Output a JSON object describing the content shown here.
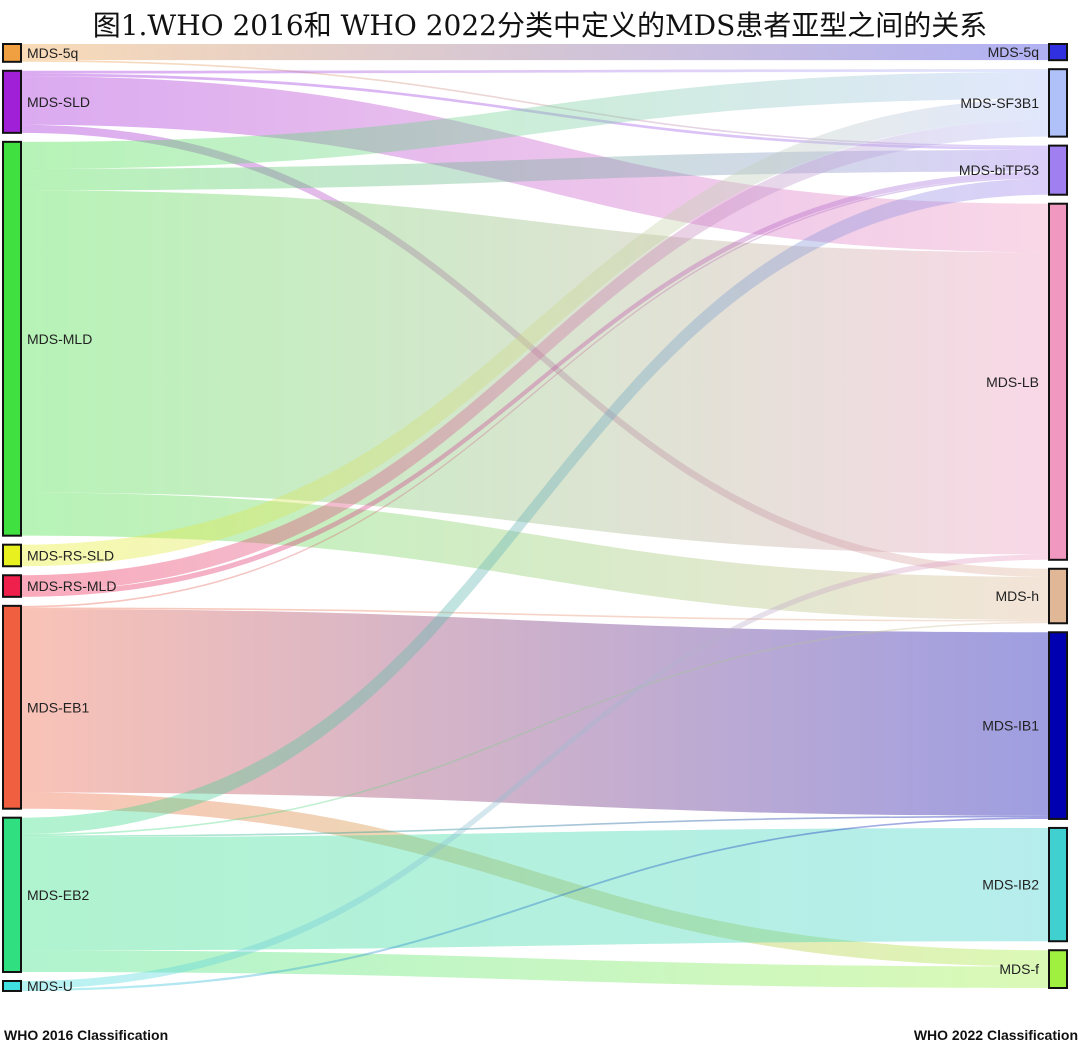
{
  "title": "图1.WHO 2016和 WHO 2022分类中定义的MDS患者亚型之间的关系",
  "left_axis_label": "WHO 2016 Classification",
  "right_axis_label": "WHO 2022 Classification",
  "chart_data": {
    "type": "sankey",
    "left_nodes": [
      {
        "id": "L_5q",
        "label": "MDS-5q",
        "color": "#f0a040"
      },
      {
        "id": "L_SLD",
        "label": "MDS-SLD",
        "color": "#a020d8"
      },
      {
        "id": "L_MLD",
        "label": "MDS-MLD",
        "color": "#40e040"
      },
      {
        "id": "L_RSSLD",
        "label": "MDS-RS-SLD",
        "color": "#e8f020"
      },
      {
        "id": "L_RSMLD",
        "label": "MDS-RS-MLD",
        "color": "#f0204c"
      },
      {
        "id": "L_EB1",
        "label": "MDS-EB1",
        "color": "#f06040"
      },
      {
        "id": "L_EB2",
        "label": "MDS-EB2",
        "color": "#30e080"
      },
      {
        "id": "L_U",
        "label": "MDS-U",
        "color": "#40e0e0"
      }
    ],
    "right_nodes": [
      {
        "id": "R_5q",
        "label": "MDS-5q",
        "color": "#3030e0"
      },
      {
        "id": "R_SF3B1",
        "label": "MDS-SF3B1",
        "color": "#b0c0f8"
      },
      {
        "id": "R_biTP53",
        "label": "MDS-biTP53",
        "color": "#a080f0"
      },
      {
        "id": "R_LB",
        "label": "MDS-LB",
        "color": "#f098c0"
      },
      {
        "id": "R_h",
        "label": "MDS-h",
        "color": "#e0b898"
      },
      {
        "id": "R_IB1",
        "label": "MDS-IB1",
        "color": "#0000b0"
      },
      {
        "id": "R_IB2",
        "label": "MDS-IB2",
        "color": "#40d0d0"
      },
      {
        "id": "R_f",
        "label": "MDS-f",
        "color": "#a0f040"
      }
    ],
    "links": [
      {
        "source": "L_5q",
        "target": "R_5q",
        "value": 3
      },
      {
        "source": "L_5q",
        "target": "R_biTP53",
        "value": 0.3
      },
      {
        "source": "L_SLD",
        "target": "R_SF3B1",
        "value": 0.5
      },
      {
        "source": "L_SLD",
        "target": "R_biTP53",
        "value": 0.5
      },
      {
        "source": "L_SLD",
        "target": "R_LB",
        "value": 9
      },
      {
        "source": "L_SLD",
        "target": "R_h",
        "value": 1.5
      },
      {
        "source": "L_MLD",
        "target": "R_SF3B1",
        "value": 5
      },
      {
        "source": "L_MLD",
        "target": "R_biTP53",
        "value": 4
      },
      {
        "source": "L_MLD",
        "target": "R_LB",
        "value": 56
      },
      {
        "source": "L_MLD",
        "target": "R_h",
        "value": 8
      },
      {
        "source": "L_RSSLD",
        "target": "R_SF3B1",
        "value": 4
      },
      {
        "source": "L_RSMLD",
        "target": "R_SF3B1",
        "value": 3
      },
      {
        "source": "L_RSMLD",
        "target": "R_biTP53",
        "value": 1
      },
      {
        "source": "L_EB1",
        "target": "R_biTP53",
        "value": 0.3
      },
      {
        "source": "L_EB1",
        "target": "R_IB1",
        "value": 34
      },
      {
        "source": "L_EB1",
        "target": "R_f",
        "value": 3
      },
      {
        "source": "L_EB1",
        "target": "R_h",
        "value": 0.3
      },
      {
        "source": "L_EB2",
        "target": "R_biTP53",
        "value": 3
      },
      {
        "source": "L_EB2",
        "target": "R_IB2",
        "value": 21
      },
      {
        "source": "L_EB2",
        "target": "R_f",
        "value": 4
      },
      {
        "source": "L_EB2",
        "target": "R_h",
        "value": 0.3
      },
      {
        "source": "L_EB2",
        "target": "R_IB1",
        "value": 0.3
      },
      {
        "source": "L_U",
        "target": "R_LB",
        "value": 1
      },
      {
        "source": "L_U",
        "target": "R_IB1",
        "value": 0.3
      }
    ]
  }
}
